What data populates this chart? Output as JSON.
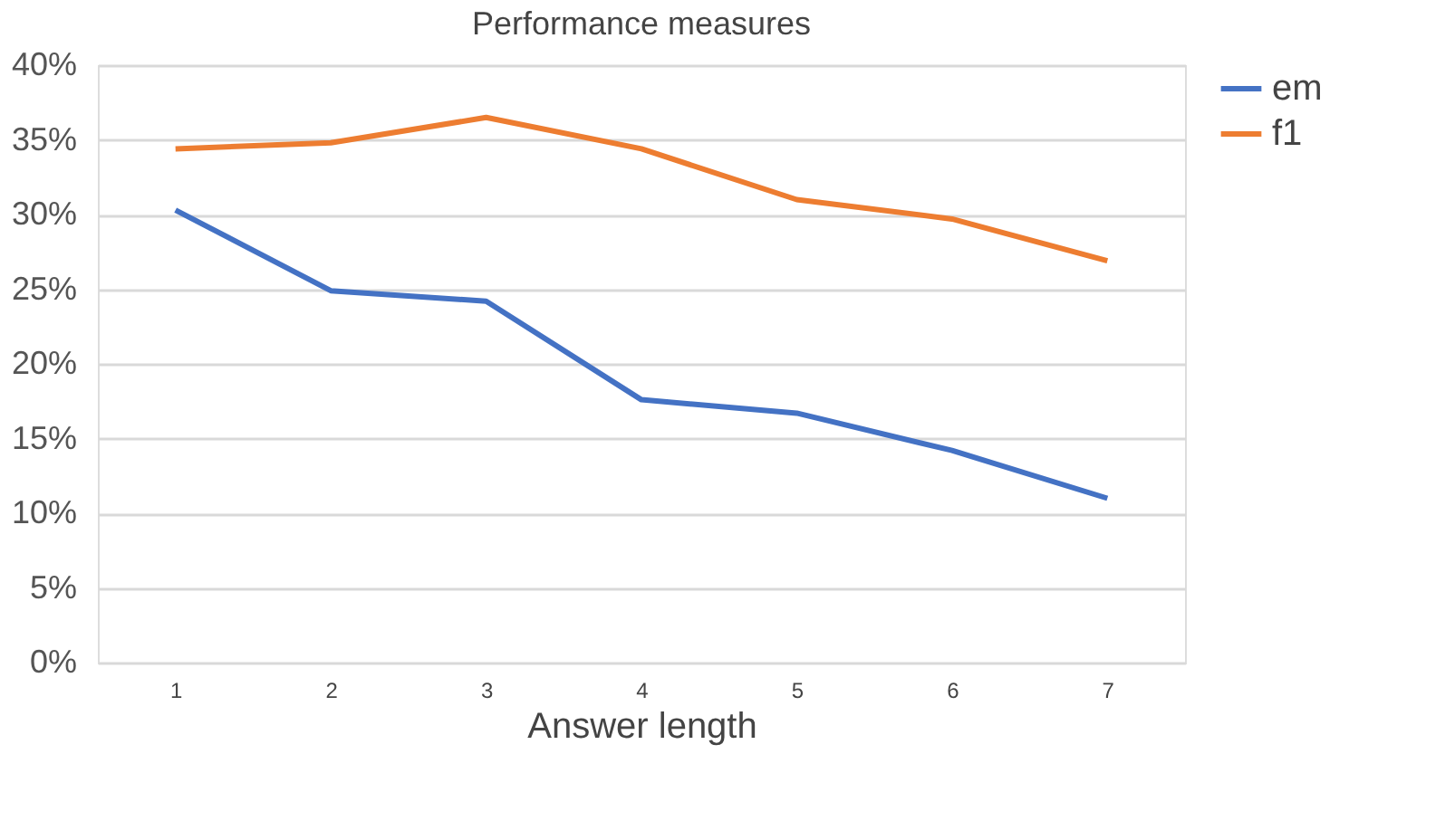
{
  "chart_data": {
    "type": "line",
    "title": "Performance measures",
    "xlabel": "Answer length",
    "categories": [
      "1",
      "2",
      "3",
      "4",
      "5",
      "6",
      "7"
    ],
    "series": [
      {
        "name": "em",
        "color": "#4472c4",
        "values": [
          30.3,
          24.9,
          24.2,
          17.6,
          16.7,
          14.2,
          11.0
        ]
      },
      {
        "name": "f1",
        "color": "#ed7d31",
        "values": [
          34.4,
          34.8,
          36.5,
          34.4,
          31.0,
          29.7,
          26.9
        ]
      }
    ],
    "ylim": [
      0,
      40
    ],
    "yticks": [
      {
        "value": 0,
        "label": "0%"
      },
      {
        "value": 5,
        "label": "5%"
      },
      {
        "value": 10,
        "label": "10%"
      },
      {
        "value": 15,
        "label": "15%"
      },
      {
        "value": 20,
        "label": "20%"
      },
      {
        "value": 25,
        "label": "25%"
      },
      {
        "value": 30,
        "label": "30%"
      },
      {
        "value": 35,
        "label": "35%"
      },
      {
        "value": 40,
        "label": "40%"
      }
    ],
    "grid": "y",
    "legend": "right",
    "marker": "none",
    "line_style": "solid"
  }
}
